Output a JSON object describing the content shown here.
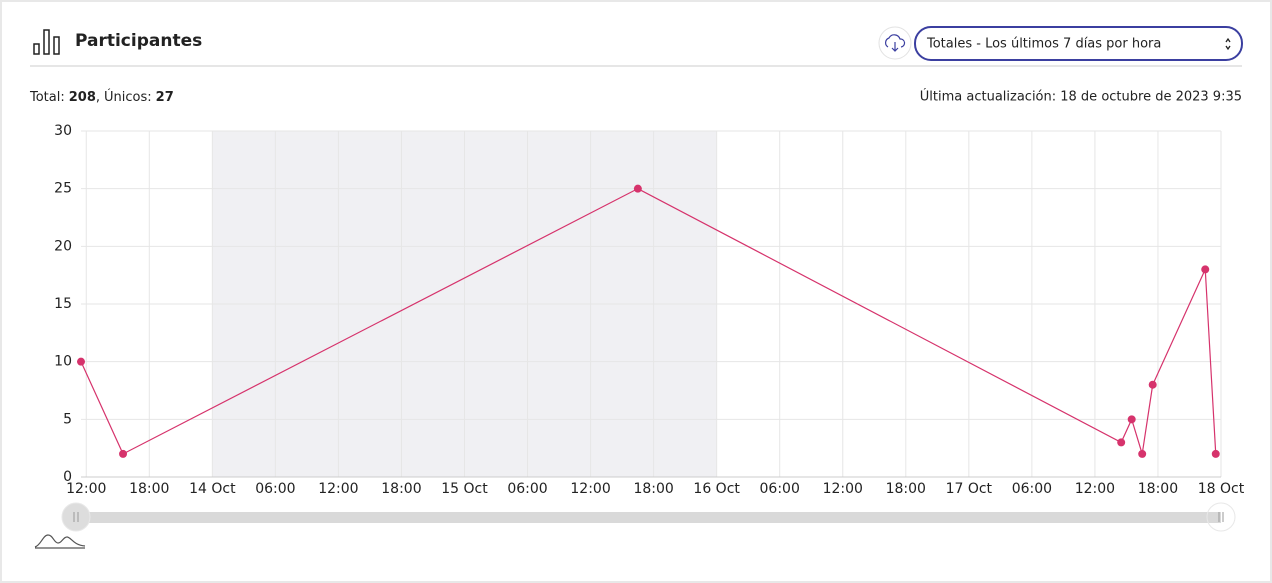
{
  "header": {
    "title": "Participantes",
    "select": "Totales - Los últimos 7 días por hora"
  },
  "summary": {
    "total_label": "Total:",
    "total": 208,
    "separator": ",",
    "unique_label": "Únicos:",
    "unique": 27,
    "updated": "Última actualización: 18 de octubre de 2023 9:35"
  },
  "chart_data": {
    "type": "line",
    "x": [
      "13 Oct 11:30",
      "13 Oct 15:30",
      "15 Oct 16:30",
      "17 Oct 14:30",
      "17 Oct 15:30",
      "17 Oct 16:30",
      "17 Oct 17:30",
      "17 Oct 22:30",
      "17 Oct 23:30"
    ],
    "series": [
      {
        "color": "#d6336c",
        "values": [
          10,
          2,
          25,
          3,
          5,
          2,
          8,
          18,
          2
        ]
      }
    ],
    "xlim": [
      "13 Oct 11:30",
      "18 Oct 00:00"
    ],
    "xticks": [
      {
        "value": "13 Oct 12:00",
        "label": "12:00"
      },
      {
        "value": "13 Oct 18:00",
        "label": "18:00"
      },
      {
        "value": "14 Oct 00:00",
        "label": "14 Oct"
      },
      {
        "value": "14 Oct 06:00",
        "label": "06:00"
      },
      {
        "value": "14 Oct 12:00",
        "label": "12:00"
      },
      {
        "value": "14 Oct 18:00",
        "label": "18:00"
      },
      {
        "value": "15 Oct 00:00",
        "label": "15 Oct"
      },
      {
        "value": "15 Oct 06:00",
        "label": "06:00"
      },
      {
        "value": "15 Oct 12:00",
        "label": "12:00"
      },
      {
        "value": "15 Oct 18:00",
        "label": "18:00"
      },
      {
        "value": "16 Oct 00:00",
        "label": "16 Oct"
      },
      {
        "value": "16 Oct 06:00",
        "label": "06:00"
      },
      {
        "value": "16 Oct 12:00",
        "label": "12:00"
      },
      {
        "value": "16 Oct 18:00",
        "label": "18:00"
      },
      {
        "value": "17 Oct 00:00",
        "label": "17 Oct"
      },
      {
        "value": "17 Oct 06:00",
        "label": "06:00"
      },
      {
        "value": "17 Oct 12:00",
        "label": "12:00"
      },
      {
        "value": "17 Oct 18:00",
        "label": "18:00"
      },
      {
        "value": "18 Oct 00:00",
        "label": "18 Oct"
      }
    ],
    "ylim": [
      0,
      30
    ],
    "yticks": [
      0,
      5,
      10,
      15,
      20,
      25,
      30
    ],
    "grid": true,
    "shaded_range": [
      "14 Oct 00:00",
      "16 Oct 00:00"
    ],
    "shaded_color": "#f0f0f3"
  }
}
